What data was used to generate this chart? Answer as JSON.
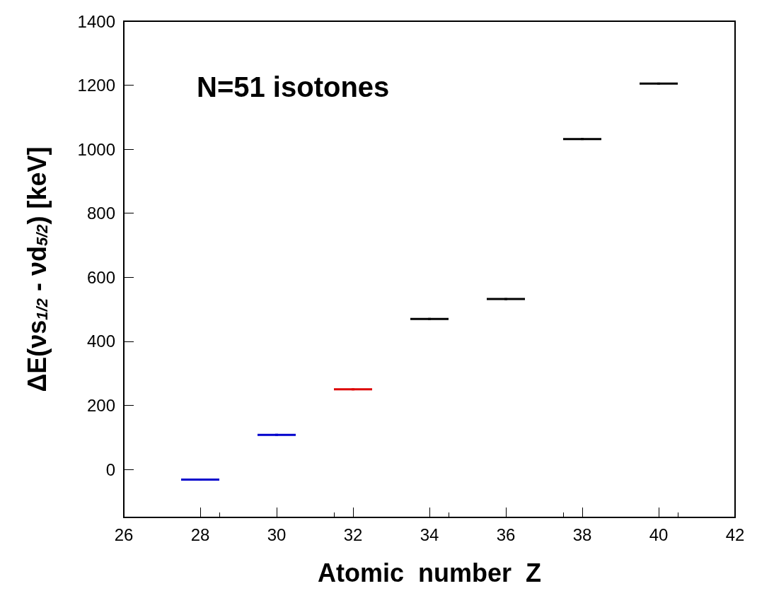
{
  "chart_data": {
    "type": "scatter",
    "xlabel": "Atomic  number  Z",
    "ylabel": "ΔE(νs$_{1/2}$ - νd$_{5/2}$) [keV]",
    "annotations": [
      "N=51 isotones"
    ],
    "grid": false,
    "xlim": [
      26,
      42
    ],
    "xticks": [
      26,
      28,
      30,
      32,
      34,
      36,
      38,
      40,
      42
    ],
    "ylim": [
      -150,
      1400
    ],
    "yticks": [
      0,
      200,
      400,
      600,
      800,
      1000,
      1200,
      1400
    ],
    "series": [
      {
        "color": "#0000cc",
        "x": [
          28,
          30
        ],
        "values": [
          -32,
          108
        ],
        "xerrors": [
          0.5,
          0.5
        ]
      },
      {
        "color": "#dd0000",
        "x": [
          32
        ],
        "values": [
          250
        ],
        "xerrors": [
          0.5
        ]
      },
      {
        "color": "#000000",
        "x": [
          34,
          36,
          38,
          40
        ],
        "values": [
          470,
          532,
          1032,
          1205
        ],
        "xerrors": [
          0.5,
          0.5,
          0.5,
          0.5
        ]
      }
    ]
  }
}
